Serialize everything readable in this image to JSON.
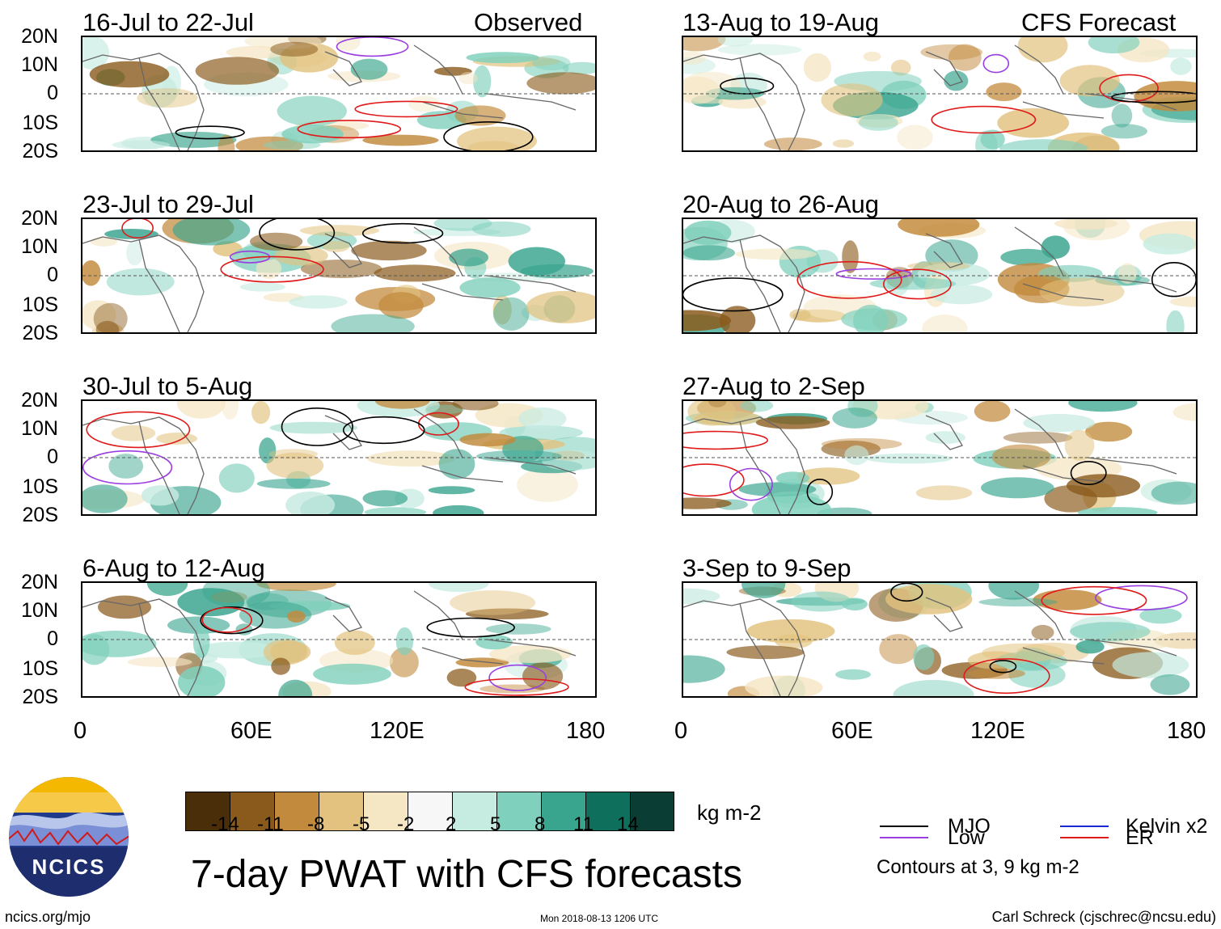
{
  "header": {
    "observed_label": "Observed",
    "forecast_label": "CFS Forecast"
  },
  "panels": {
    "observed": [
      {
        "title": "16-Jul to 22-Jul"
      },
      {
        "title": "23-Jul to 29-Jul"
      },
      {
        "title": "30-Jul to 5-Aug"
      },
      {
        "title": "6-Aug to 12-Aug"
      }
    ],
    "forecast": [
      {
        "title": "13-Aug to 19-Aug"
      },
      {
        "title": "20-Aug to 26-Aug"
      },
      {
        "title": "27-Aug to 2-Sep"
      },
      {
        "title": "3-Sep to 9-Sep"
      }
    ]
  },
  "axes": {
    "lat_labels": [
      "20N",
      "10N",
      "0",
      "10S",
      "20S"
    ],
    "lon_labels": [
      "0",
      "60E",
      "120E",
      "180"
    ]
  },
  "colorbar": {
    "unit": "kg m-2",
    "ticks": [
      "-14",
      "-11",
      "-8",
      "-5",
      "-2",
      "2",
      "5",
      "8",
      "11",
      "14"
    ],
    "colors": [
      "#4a2e0a",
      "#8a5a1c",
      "#c28a3c",
      "#e2c27e",
      "#f5e6c4",
      "#f7f7f7",
      "#c6ebe1",
      "#7fd0bc",
      "#3aa58f",
      "#0f6f5d",
      "#0a3d33"
    ]
  },
  "title": "7-day PWAT with CFS forecasts",
  "legend": {
    "items": [
      {
        "label": "MJO",
        "color": "#000000"
      },
      {
        "label": "Kelvin x2",
        "color": "#1a2ad0"
      },
      {
        "label": "Low",
        "color": "#9a3ee0"
      },
      {
        "label": "ER",
        "color": "#e01a1a"
      }
    ],
    "note": "Contours at 3, 9 kg m-2"
  },
  "logo": {
    "text": "NCICS"
  },
  "footer": {
    "url": "ncics.org/mjo",
    "date": "Mon 2018-08-13 1206 UTC",
    "credit": "Carl Schreck (cjschrec@ncsu.edu)"
  }
}
